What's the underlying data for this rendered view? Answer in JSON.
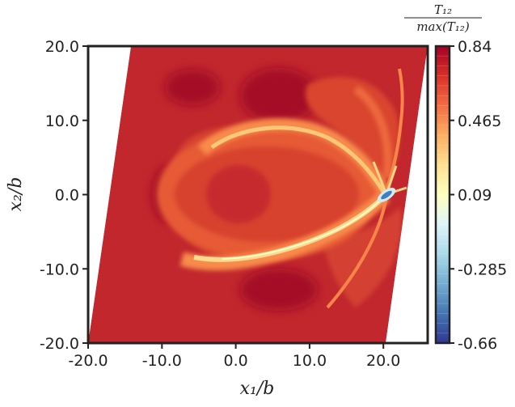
{
  "chart_data": {
    "type": "heatmap",
    "title": "",
    "xlabel": "x₁/b",
    "ylabel": "x₂/b",
    "xlim": [
      -20,
      26
    ],
    "ylim": [
      -20,
      20
    ],
    "x_ticks": [
      "-20.0",
      "-10.0",
      "0.0",
      "10.0",
      "20.0"
    ],
    "x_tick_values": [
      -20,
      -10,
      0,
      10,
      20
    ],
    "y_ticks": [
      "20.0",
      "10.0",
      "0.0",
      "-10.0",
      "-20.0"
    ],
    "y_tick_values": [
      20,
      10,
      0,
      -10,
      -20
    ],
    "colorbar": {
      "label_numerator": "T₁₂",
      "label_denominator": "max(T₁₂)",
      "ticks": [
        "0.84",
        "0.465",
        "0.09",
        "-0.285",
        "-0.66"
      ],
      "tick_values": [
        0.84,
        0.465,
        0.09,
        -0.285,
        -0.66
      ],
      "min": -0.66,
      "max": 0.84,
      "levels": 30,
      "colormap": "RdYlBu_r"
    },
    "domain": {
      "shape": "parallelogram",
      "corners": [
        [
          -20,
          -20
        ],
        [
          -14.2,
          20
        ],
        [
          25.8,
          20
        ],
        [
          20,
          -20
        ]
      ]
    },
    "features": [
      {
        "label": "singular point",
        "x": 20,
        "y": 0,
        "value": -0.6
      },
      {
        "label": "bright band upper lobe",
        "value": 0.2
      },
      {
        "label": "bright band lower lobe",
        "value": 0.25
      }
    ],
    "grid": false,
    "legend": "colorbar-right"
  },
  "colors": {
    "frame": "#222222",
    "background_field": "#c1272d",
    "dark_patch": "#a50f26",
    "mid_field": "#dc4a31",
    "light_field": "#f57a45",
    "band": "#fdd588",
    "band_core": "#ffffcc",
    "singular": "#3d7fc0"
  }
}
